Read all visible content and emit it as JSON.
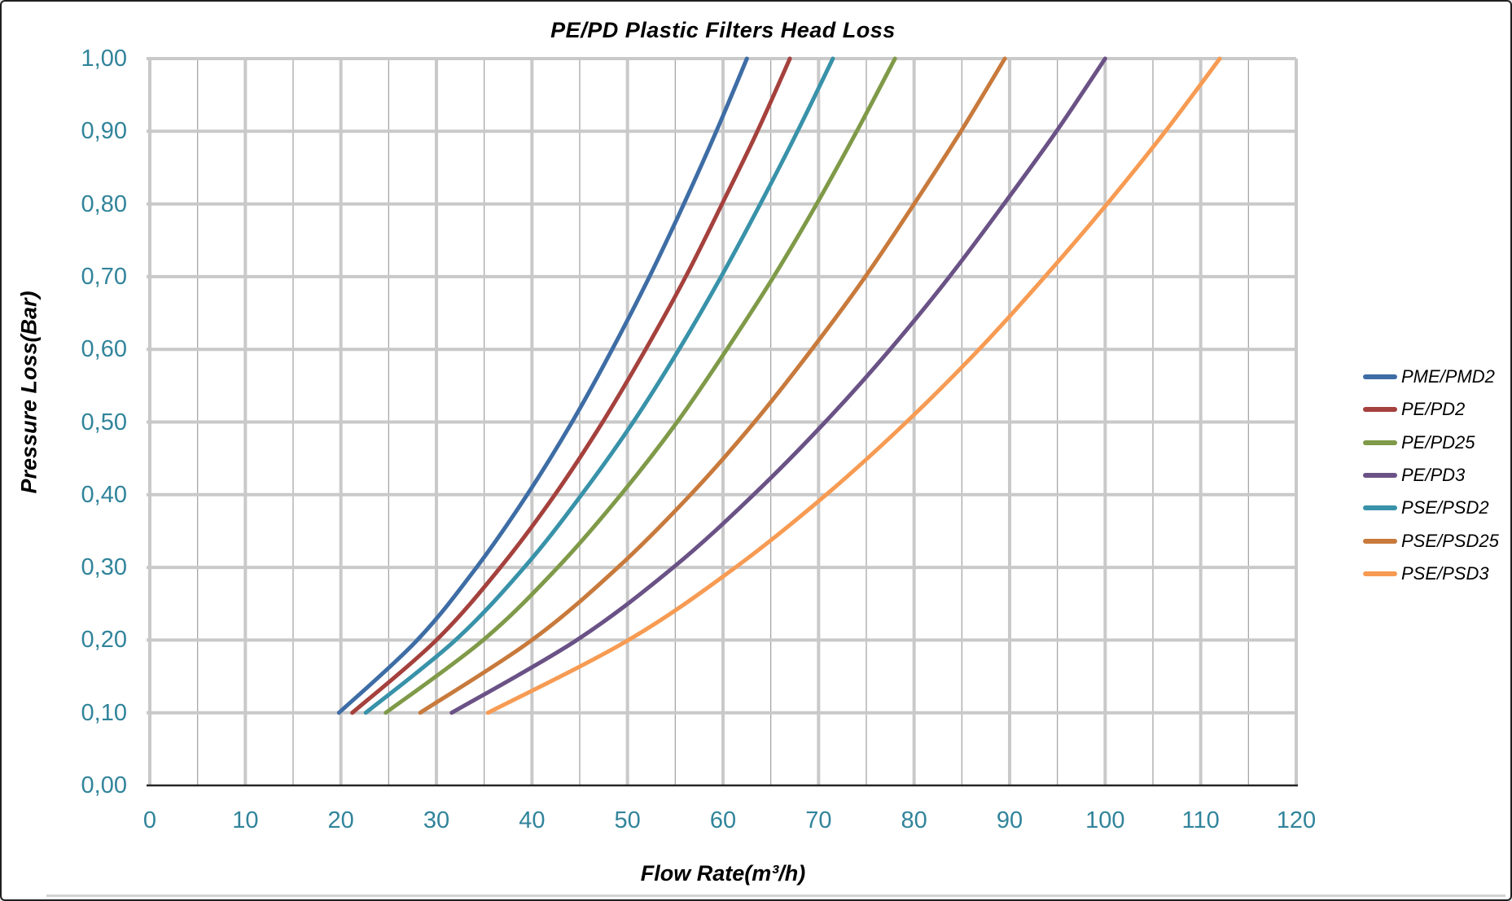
{
  "window": {
    "background": "#FFFFFF",
    "border_color": "#1F1F1F"
  },
  "chart_data": {
    "type": "line",
    "title": "PE/PD Plastic Filters Head Loss",
    "xlabel": "Flow Rate(m³/h)",
    "ylabel": "Pressure Loss(Bar)",
    "xlim": [
      0,
      120
    ],
    "ylim": [
      0.0,
      1.0
    ],
    "x_major_step": 10,
    "x_minor_step": 5,
    "y_major_step": 0.1,
    "x_tick_labels": [
      "0",
      "10",
      "20",
      "30",
      "40",
      "50",
      "60",
      "70",
      "80",
      "90",
      "100",
      "110",
      "120"
    ],
    "y_tick_labels": [
      "0,00",
      "0,10",
      "0,20",
      "0,30",
      "0,40",
      "0,50",
      "0,60",
      "0,70",
      "0,80",
      "0,90",
      "1,00"
    ],
    "tick_label_color": "#31849B",
    "grid": {
      "major_color": "#C9C9C9",
      "minor_color": "#9F9F9F",
      "axis_color": "#262626",
      "grid_on": true
    },
    "legend_position": "right",
    "pressure_points_bar": [
      0.1,
      0.2,
      0.3,
      0.4,
      0.5,
      0.6,
      0.7,
      0.8,
      0.9,
      1.0
    ],
    "series": [
      {
        "name": "PME/PMD2",
        "color": "#3E6DA5",
        "flow_at_1bar": 62.5,
        "flow_m3h": [
          19.8,
          28.0,
          34.2,
          39.5,
          44.2,
          48.4,
          52.3,
          55.9,
          59.3,
          62.5
        ]
      },
      {
        "name": "PE/PD2",
        "color": "#A5413D",
        "flow_at_1bar": 67.0,
        "flow_m3h": [
          21.2,
          30.0,
          36.7,
          42.4,
          47.4,
          51.9,
          56.1,
          59.9,
          63.6,
          67.0
        ]
      },
      {
        "name": "PE/PD25",
        "color": "#7F9A48",
        "flow_at_1bar": 78.0,
        "flow_m3h": [
          24.7,
          34.9,
          42.7,
          49.3,
          55.2,
          60.4,
          65.3,
          69.8,
          74.0,
          78.0
        ]
      },
      {
        "name": "PE/PD3",
        "color": "#6A5286",
        "flow_at_1bar": 100.0,
        "flow_m3h": [
          31.6,
          44.7,
          54.8,
          63.2,
          70.7,
          77.5,
          83.7,
          89.4,
          94.9,
          100.0
        ]
      },
      {
        "name": "PSE/PSD2",
        "color": "#3892A9",
        "flow_at_1bar": 71.5,
        "flow_m3h": [
          22.6,
          32.0,
          39.2,
          45.2,
          50.6,
          55.4,
          59.8,
          63.9,
          67.8,
          71.5
        ]
      },
      {
        "name": "PSE/PSD25",
        "color": "#C87A3C",
        "flow_at_1bar": 89.5,
        "flow_m3h": [
          28.3,
          40.0,
          49.0,
          56.6,
          63.3,
          69.3,
          74.9,
          80.0,
          84.9,
          89.5
        ]
      },
      {
        "name": "PSE/PSD3",
        "color": "#F79B53",
        "flow_at_1bar": 112.0,
        "flow_m3h": [
          35.4,
          50.1,
          61.3,
          70.8,
          79.2,
          86.8,
          93.7,
          100.2,
          106.3,
          112.0
        ]
      }
    ]
  }
}
